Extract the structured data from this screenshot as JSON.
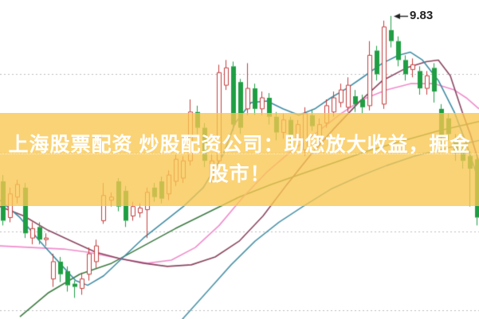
{
  "page": {
    "background": "#ffffff"
  },
  "banner": {
    "full_text": "上海股票配资 炒股配资公司：助您放大收益，掘金股市！",
    "line1": "上海股票配资 炒股配资公司：助您放大收益，掘金",
    "line2": "股市！",
    "bg_color": "rgba(249,198,80,0.78)",
    "text_color": "#ffffff"
  },
  "chart_data": {
    "type": "candlestick",
    "title": "",
    "xlabel": "",
    "ylabel": "",
    "ylim": [
      7.906,
      9.931
    ],
    "grid": {
      "visible": true,
      "style": "dotted",
      "color": "#bcbcbc",
      "prices": [
        9.46,
        8.96,
        8.46,
        7.96
      ]
    },
    "annotation": {
      "text": "9.83",
      "price": 9.83,
      "arrow_tip_x": 496,
      "color": "#222222"
    },
    "candle_colors": {
      "up": "#c43c3c",
      "up_fill": "#ffffff",
      "down": "#1f9e43",
      "down_stroke": "#147a2e"
    },
    "candle_width": 5,
    "candles": [
      [
        3,
        "g",
        8.78,
        8.53,
        8.82,
        8.5
      ],
      [
        12,
        "r",
        8.55,
        8.7,
        8.74,
        8.52
      ],
      [
        21,
        "r",
        8.68,
        8.76,
        8.79,
        8.64
      ],
      [
        31,
        "g",
        8.74,
        8.45,
        8.77,
        8.42
      ],
      [
        40,
        "r",
        8.42,
        8.48,
        8.52,
        8.38
      ],
      [
        49,
        "g",
        8.49,
        8.41,
        8.52,
        8.38
      ],
      [
        57,
        "r",
        8.41,
        8.42,
        8.45,
        8.37
      ],
      [
        66,
        "r",
        8.16,
        8.27,
        8.32,
        8.11
      ],
      [
        75,
        "g",
        8.27,
        8.19,
        8.3,
        8.14
      ],
      [
        84,
        "g",
        8.21,
        8.12,
        8.24,
        8.08
      ],
      [
        93,
        "g",
        8.13,
        8.11,
        8.15,
        8.04
      ],
      [
        102,
        "r",
        8.1,
        8.16,
        8.2,
        8.06
      ],
      [
        111,
        "r",
        8.19,
        8.32,
        8.36,
        8.15
      ],
      [
        120,
        "r",
        8.27,
        8.37,
        8.41,
        8.23
      ],
      [
        129,
        "r",
        8.53,
        8.69,
        8.77,
        8.51
      ],
      [
        139,
        "r",
        8.66,
        8.68,
        8.71,
        8.62
      ],
      [
        148,
        "g",
        8.78,
        8.62,
        8.8,
        8.59
      ],
      [
        157,
        "g",
        8.72,
        8.53,
        8.75,
        8.49
      ],
      [
        166,
        "r",
        8.56,
        8.62,
        8.65,
        8.53
      ],
      [
        175,
        "r",
        8.58,
        8.61,
        8.64,
        8.55
      ],
      [
        184,
        "r",
        8.6,
        8.71,
        8.74,
        8.42
      ],
      [
        193,
        "g",
        8.74,
        8.68,
        8.77,
        8.65
      ],
      [
        202,
        "g",
        8.78,
        8.67,
        8.81,
        8.64
      ],
      [
        211,
        "r",
        8.7,
        8.82,
        8.85,
        8.66
      ],
      [
        220,
        "r",
        8.78,
        8.92,
        8.95,
        8.75
      ],
      [
        229,
        "r",
        8.8,
        8.91,
        8.94,
        8.77
      ],
      [
        238,
        "r",
        8.91,
        9.22,
        9.3,
        8.88
      ],
      [
        247,
        "g",
        9.22,
        9.12,
        9.26,
        9.08
      ],
      [
        256,
        "g",
        9.12,
        8.91,
        9.15,
        8.87
      ],
      [
        265,
        "r",
        8.8,
        8.91,
        8.95,
        8.77
      ],
      [
        274,
        "r",
        8.91,
        9.47,
        9.52,
        8.89
      ],
      [
        283,
        "r",
        9.39,
        9.5,
        9.55,
        9.36
      ],
      [
        292,
        "g",
        9.51,
        9.14,
        9.54,
        9.1
      ],
      [
        301,
        "g",
        9.41,
        9.12,
        9.43,
        9.08
      ],
      [
        310,
        "r",
        9.24,
        9.37,
        9.53,
        9.2
      ],
      [
        319,
        "g",
        9.37,
        9.24,
        9.4,
        9.2
      ],
      [
        328,
        "r",
        9.24,
        9.31,
        9.35,
        9.2
      ],
      [
        337,
        "g",
        9.31,
        9.19,
        9.34,
        9.14
      ],
      [
        346,
        "g",
        9.19,
        9.09,
        9.22,
        9.04
      ],
      [
        355,
        "r",
        9.09,
        9.17,
        9.21,
        9.05
      ],
      [
        364,
        "g",
        9.17,
        9.07,
        9.19,
        9.01
      ],
      [
        373,
        "r",
        9.04,
        9.14,
        9.17,
        9.0
      ],
      [
        382,
        "r",
        8.98,
        9.21,
        9.25,
        8.94
      ],
      [
        391,
        "g",
        9.2,
        9.13,
        9.23,
        9.1
      ],
      [
        400,
        "r",
        9.06,
        9.14,
        9.18,
        9.02
      ],
      [
        409,
        "r",
        9.15,
        9.26,
        9.3,
        9.12
      ],
      [
        418,
        "r",
        9.22,
        9.31,
        9.35,
        9.19
      ],
      [
        427,
        "r",
        9.28,
        9.36,
        9.4,
        9.25
      ],
      [
        436,
        "r",
        9.25,
        9.39,
        9.44,
        9.22
      ],
      [
        445,
        "g",
        9.32,
        9.27,
        9.36,
        9.22
      ],
      [
        454,
        "g",
        9.3,
        9.25,
        9.33,
        9.21
      ],
      [
        463,
        "r",
        9.26,
        9.58,
        9.67,
        9.23
      ],
      [
        472,
        "g",
        9.61,
        9.46,
        9.64,
        9.42
      ],
      [
        481,
        "r",
        9.27,
        9.76,
        9.8,
        9.24
      ],
      [
        490,
        "g",
        9.74,
        9.67,
        9.83,
        9.63
      ],
      [
        499,
        "g",
        9.67,
        9.55,
        9.7,
        9.51
      ],
      [
        508,
        "g",
        9.55,
        9.46,
        9.58,
        9.42
      ],
      [
        517,
        "r",
        9.49,
        9.52,
        9.56,
        9.44
      ],
      [
        526,
        "g",
        9.48,
        9.37,
        9.51,
        9.33
      ],
      [
        535,
        "r",
        9.37,
        9.45,
        9.48,
        9.33
      ],
      [
        544,
        "g",
        9.5,
        9.35,
        9.53,
        9.28
      ],
      [
        553,
        "g",
        9.24,
        9.06,
        9.27,
        9.01
      ],
      [
        562,
        "g",
        9.18,
        9.08,
        9.21,
        9.04
      ],
      [
        571,
        "g",
        9.05,
        8.96,
        9.08,
        8.91
      ],
      [
        580,
        "g",
        8.98,
        8.91,
        9.01,
        8.86
      ],
      [
        589,
        "g",
        8.94,
        8.86,
        8.97,
        8.62
      ],
      [
        598,
        "g",
        8.92,
        8.55,
        8.95,
        8.5
      ]
    ],
    "moving_averages": [
      {
        "name": "ma-slow-teal",
        "color": "#4b93a8",
        "points": [
          [
            228,
            7.9
          ],
          [
            260,
            8.08
          ],
          [
            290,
            8.25
          ],
          [
            320,
            8.4
          ],
          [
            350,
            8.52
          ],
          [
            380,
            8.62
          ],
          [
            415,
            8.73
          ],
          [
            450,
            8.81
          ],
          [
            485,
            8.88
          ],
          [
            520,
            8.94
          ],
          [
            560,
            8.99
          ],
          [
            601,
            9.04
          ]
        ]
      },
      {
        "name": "ma-dark-green",
        "color": "#3c7a41",
        "points": [
          [
            25,
            7.92
          ],
          [
            60,
            8.07
          ],
          [
            100,
            8.19
          ],
          [
            140,
            8.26
          ],
          [
            180,
            8.37
          ],
          [
            220,
            8.48
          ],
          [
            260,
            8.58
          ],
          [
            300,
            8.68
          ],
          [
            340,
            8.76
          ],
          [
            380,
            8.83
          ],
          [
            420,
            8.9
          ],
          [
            460,
            8.97
          ],
          [
            500,
            9.03
          ],
          [
            550,
            9.1
          ],
          [
            601,
            9.16
          ]
        ]
      },
      {
        "name": "ma-pink",
        "color": "#f08bcb",
        "points": [
          [
            0,
            8.37
          ],
          [
            40,
            8.36
          ],
          [
            80,
            8.35
          ],
          [
            110,
            8.33
          ],
          [
            150,
            8.29
          ],
          [
            185,
            8.26
          ],
          [
            215,
            8.28
          ],
          [
            245,
            8.36
          ],
          [
            275,
            8.5
          ],
          [
            305,
            8.68
          ],
          [
            335,
            8.84
          ],
          [
            365,
            8.97
          ],
          [
            395,
            9.08
          ],
          [
            425,
            9.2
          ],
          [
            455,
            9.3
          ],
          [
            485,
            9.36
          ],
          [
            515,
            9.4
          ],
          [
            545,
            9.4
          ],
          [
            570,
            9.36
          ],
          [
            585,
            9.31
          ],
          [
            601,
            9.24
          ]
        ]
      },
      {
        "name": "ma-maroon",
        "color": "#8a4560",
        "points": [
          [
            0,
            8.62
          ],
          [
            30,
            8.56
          ],
          [
            60,
            8.47
          ],
          [
            90,
            8.4
          ],
          [
            120,
            8.33
          ],
          [
            150,
            8.29
          ],
          [
            180,
            8.26
          ],
          [
            210,
            8.24
          ],
          [
            240,
            8.25
          ],
          [
            270,
            8.3
          ],
          [
            300,
            8.4
          ],
          [
            330,
            8.56
          ],
          [
            360,
            8.76
          ],
          [
            390,
            8.95
          ],
          [
            420,
            9.12
          ],
          [
            450,
            9.28
          ],
          [
            480,
            9.42
          ],
          [
            510,
            9.5
          ],
          [
            535,
            9.54
          ],
          [
            550,
            9.55
          ],
          [
            565,
            9.45
          ],
          [
            580,
            9.22
          ],
          [
            590,
            9.08
          ],
          [
            601,
            8.9
          ]
        ]
      },
      {
        "name": "ma-teal",
        "color": "#3f8ca4",
        "points": [
          [
            0,
            8.66
          ],
          [
            25,
            8.55
          ],
          [
            50,
            8.4
          ],
          [
            75,
            8.26
          ],
          [
            95,
            8.15
          ],
          [
            110,
            8.12
          ],
          [
            130,
            8.18
          ],
          [
            155,
            8.3
          ],
          [
            180,
            8.42
          ],
          [
            205,
            8.52
          ],
          [
            230,
            8.62
          ],
          [
            255,
            8.74
          ],
          [
            280,
            8.95
          ],
          [
            295,
            9.15
          ],
          [
            315,
            9.28
          ],
          [
            335,
            9.29
          ],
          [
            355,
            9.24
          ],
          [
            375,
            9.2
          ],
          [
            395,
            9.24
          ],
          [
            415,
            9.31
          ],
          [
            435,
            9.37
          ],
          [
            455,
            9.44
          ],
          [
            480,
            9.53
          ],
          [
            500,
            9.58
          ],
          [
            515,
            9.6
          ],
          [
            530,
            9.55
          ],
          [
            550,
            9.42
          ],
          [
            570,
            9.22
          ],
          [
            585,
            9.02
          ],
          [
            601,
            8.78
          ]
        ]
      }
    ]
  }
}
